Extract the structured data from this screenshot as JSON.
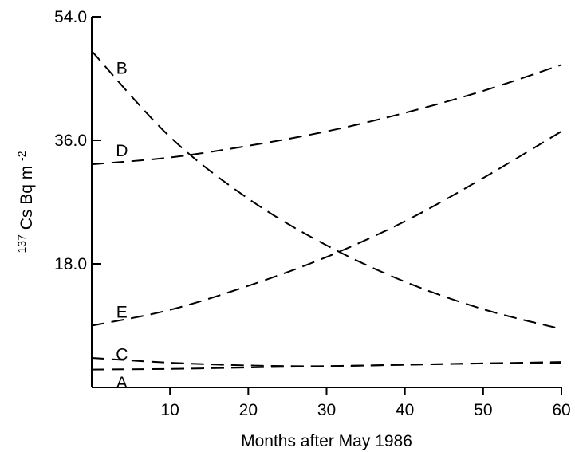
{
  "chart_data": {
    "type": "line",
    "title": "",
    "xlabel": "Months after May 1986",
    "ylabel": {
      "prefix": "137",
      "main": "Cs Bq m",
      "suffix": "-2"
    },
    "xlim": [
      0,
      60
    ],
    "ylim": [
      0,
      54
    ],
    "xticks": [
      10,
      20,
      30,
      40,
      50,
      60
    ],
    "yticks": [
      18,
      36,
      54
    ],
    "ytick_labels": [
      "18.0",
      "36.0",
      "54.0"
    ],
    "grid": false,
    "legend": "none",
    "line_style": "dashed",
    "line_color": "#000000",
    "series": [
      {
        "name": "A",
        "x": [
          0,
          10,
          20,
          30,
          40,
          50,
          60
        ],
        "y": [
          2.6,
          2.7,
          2.9,
          3.1,
          3.3,
          3.5,
          3.7
        ]
      },
      {
        "name": "B",
        "x": [
          0,
          10,
          20,
          30,
          40,
          50,
          60
        ],
        "y": [
          49,
          36.5,
          27.5,
          20.7,
          15.4,
          11.4,
          8.5
        ]
      },
      {
        "name": "C",
        "x": [
          0,
          10,
          20,
          30,
          40,
          50,
          60
        ],
        "y": [
          4.3,
          3.6,
          3.2,
          3.1,
          3.3,
          3.5,
          3.6
        ]
      },
      {
        "name": "D",
        "x": [
          0,
          10,
          20,
          30,
          40,
          50,
          60
        ],
        "y": [
          32.5,
          33.5,
          35.2,
          37.3,
          40,
          43.2,
          47
        ]
      },
      {
        "name": "E",
        "x": [
          0,
          10,
          20,
          30,
          40,
          50,
          60
        ],
        "y": [
          9,
          11.3,
          14.8,
          19,
          24.2,
          30.5,
          37.3
        ]
      }
    ],
    "label_positions": [
      {
        "name": "A",
        "x": 1,
        "y": 0.7
      },
      {
        "name": "B",
        "x": 1,
        "y": 46.5
      },
      {
        "name": "C",
        "x": 1,
        "y": 4.8
      },
      {
        "name": "D",
        "x": 1,
        "y": 34.5
      },
      {
        "name": "E",
        "x": 1,
        "y": 11
      }
    ]
  }
}
